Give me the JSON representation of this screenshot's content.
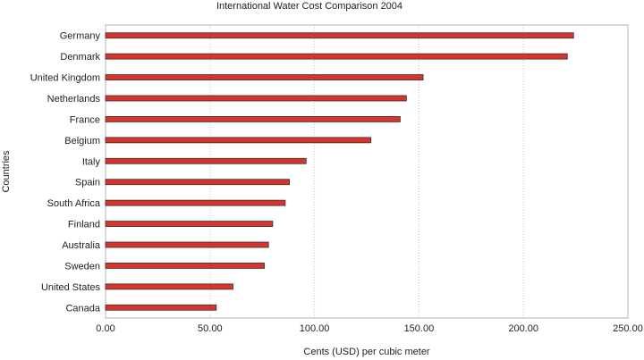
{
  "chart_data": {
    "type": "bar",
    "orientation": "horizontal",
    "title": "International Water Cost Comparison 2004",
    "xlabel": "Cents (USD) per cubic meter",
    "ylabel": "Countries",
    "categories": [
      "Germany",
      "Denmark",
      "United Kingdom",
      "Netherlands",
      "France",
      "Belgium",
      "Italy",
      "Spain",
      "South Africa",
      "Finland",
      "Australia",
      "Sweden",
      "United States",
      "Canada"
    ],
    "values": [
      224,
      221,
      152,
      144,
      141,
      127,
      96,
      88,
      86,
      80,
      78,
      76,
      61,
      53
    ],
    "xlim": [
      0,
      250
    ],
    "xticks": [
      "0.00",
      "50.00",
      "100.00",
      "150.00",
      "200.00",
      "250.00"
    ],
    "grid": true,
    "bar_color": "#d8342b",
    "bar_border_color": "#333333"
  }
}
